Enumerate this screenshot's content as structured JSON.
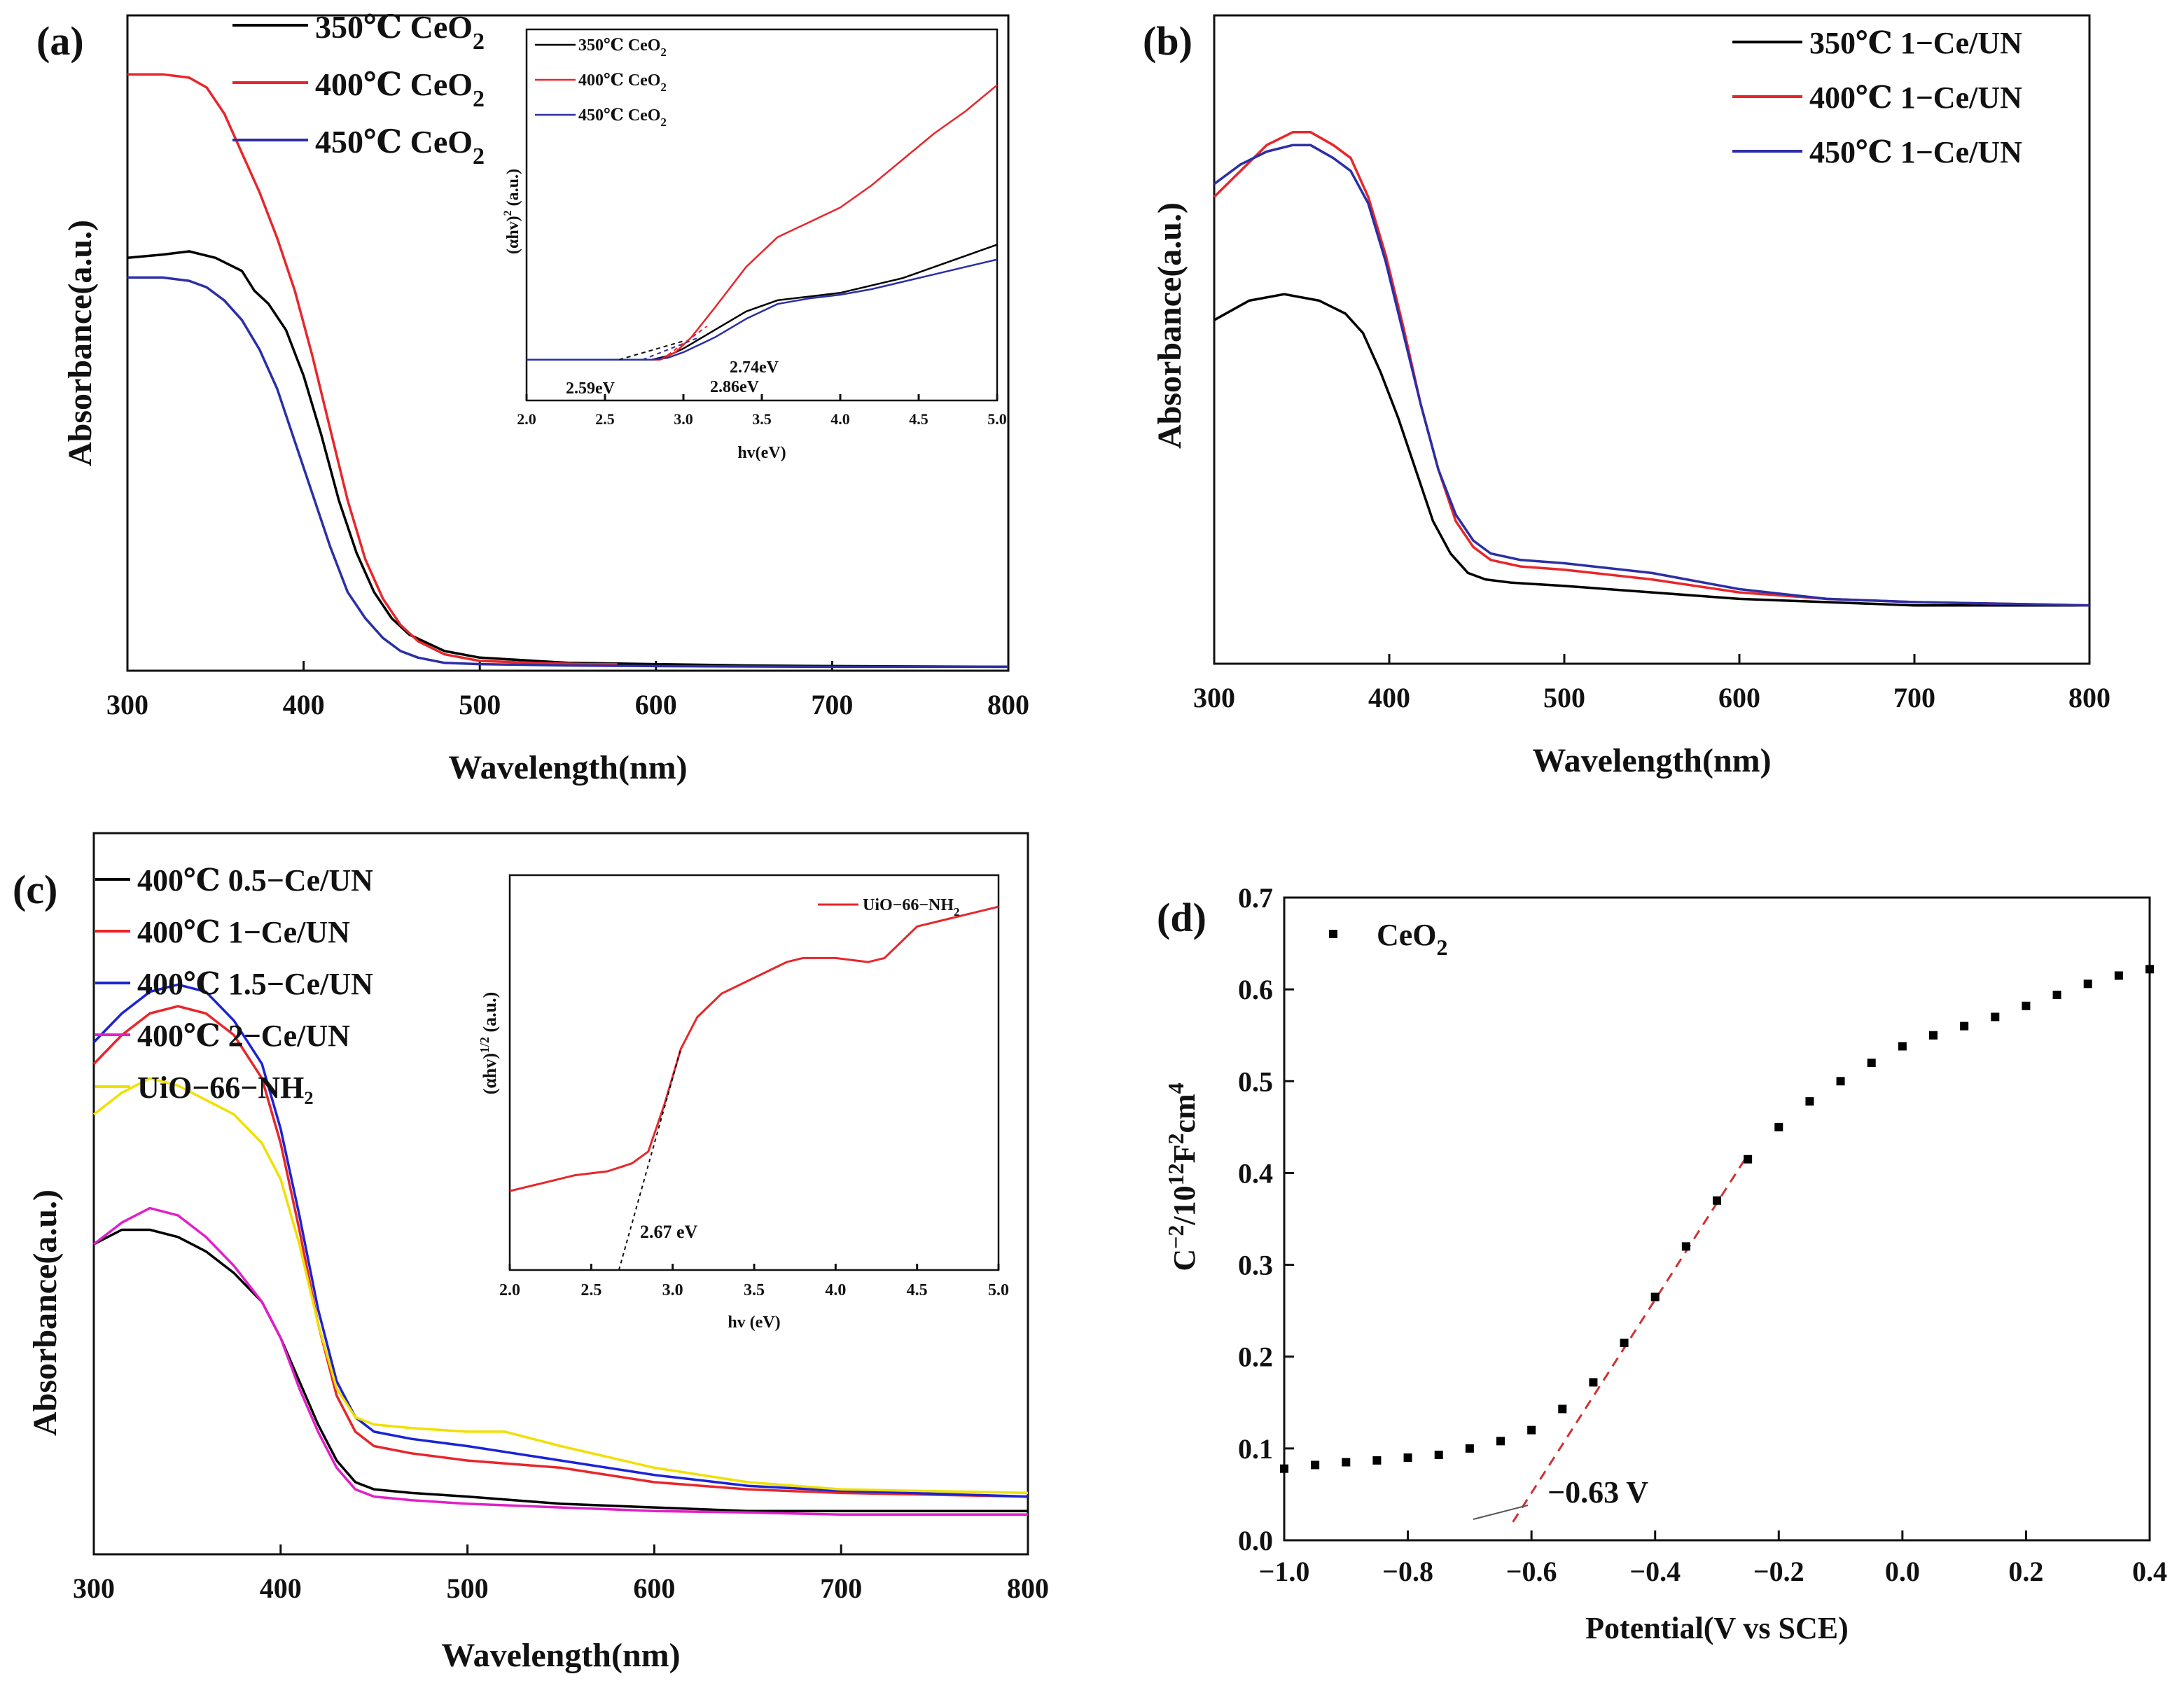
{
  "chart_data": [
    {
      "panel": "(a)",
      "type": "line",
      "title": "",
      "xlabel": "Wavelength(nm)",
      "ylabel": "Absorbance(a.u.)",
      "xlim": [
        300,
        800
      ],
      "ylim": [
        0,
        1.0
      ],
      "xticks": [
        "300",
        "400",
        "500",
        "600",
        "700",
        "800"
      ],
      "legend_position": "top-left",
      "series": [
        {
          "name": "350℃ CeO",
          "subscript": "2",
          "color": "#000000",
          "x": [
            300,
            320,
            335,
            350,
            365,
            372,
            380,
            390,
            400,
            410,
            420,
            430,
            440,
            450,
            460,
            480,
            500,
            550,
            600,
            650,
            700,
            800
          ],
          "y": [
            0.63,
            0.635,
            0.64,
            0.63,
            0.61,
            0.58,
            0.56,
            0.52,
            0.45,
            0.36,
            0.26,
            0.18,
            0.12,
            0.08,
            0.055,
            0.03,
            0.02,
            0.012,
            0.01,
            0.008,
            0.007,
            0.006
          ]
        },
        {
          "name": "400℃ CeO",
          "subscript": "2",
          "color": "#e8262a",
          "x": [
            300,
            320,
            335,
            345,
            355,
            365,
            375,
            385,
            395,
            405,
            415,
            425,
            435,
            445,
            455,
            465,
            480,
            500,
            530,
            560,
            578
          ],
          "y": [
            0.91,
            0.91,
            0.905,
            0.89,
            0.85,
            0.79,
            0.73,
            0.66,
            0.58,
            0.48,
            0.37,
            0.26,
            0.17,
            0.11,
            0.07,
            0.045,
            0.025,
            0.015,
            0.012,
            0.01,
            0.01
          ]
        },
        {
          "name": "450℃ CeO",
          "subscript": "2",
          "color": "#2b2fa6",
          "x": [
            300,
            320,
            335,
            345,
            355,
            365,
            375,
            385,
            395,
            405,
            415,
            425,
            435,
            445,
            455,
            465,
            480,
            500,
            550,
            600,
            700,
            800
          ],
          "y": [
            0.6,
            0.6,
            0.595,
            0.585,
            0.565,
            0.535,
            0.49,
            0.43,
            0.35,
            0.27,
            0.19,
            0.12,
            0.08,
            0.05,
            0.03,
            0.02,
            0.012,
            0.01,
            0.008,
            0.007,
            0.006,
            0.006
          ]
        }
      ],
      "inset": {
        "xlabel": "hv(eV)",
        "ylabel": "(αhv)",
        "ylabel_sup": "2",
        "ylabel_unit": " (a.u.)",
        "xlim": [
          2.0,
          5.0
        ],
        "ylim": [
          0,
          1.0
        ],
        "xticks": [
          "2.0",
          "2.5",
          "3.0",
          "3.5",
          "4.0",
          "4.5",
          "5.0"
        ],
        "legend_position": "top-left",
        "annotations": [
          {
            "text": "2.59eV",
            "color": "#111111",
            "x": 2.59
          },
          {
            "text": "2.74eV",
            "color": "#2b2fa6",
            "x": 2.74
          },
          {
            "text": "2.86eV",
            "color": "#e8262a",
            "x": 2.86
          }
        ],
        "series": [
          {
            "name": "350℃ CeO",
            "subscript": "2",
            "color": "#000000",
            "x": [
              2.0,
              2.8,
              2.9,
              3.0,
              3.2,
              3.4,
              3.6,
              3.8,
              4.0,
              4.2,
              4.4,
              4.6,
              4.8,
              5.0
            ],
            "y": [
              0.11,
              0.11,
              0.12,
              0.14,
              0.19,
              0.24,
              0.27,
              0.28,
              0.29,
              0.31,
              0.33,
              0.36,
              0.39,
              0.42
            ]
          },
          {
            "name": "400℃ CeO",
            "subscript": "2",
            "color": "#e8262a",
            "x": [
              2.0,
              2.85,
              2.95,
              3.05,
              3.2,
              3.4,
              3.6,
              3.8,
              4.0,
              4.2,
              4.4,
              4.6,
              4.8,
              5.0
            ],
            "y": [
              0.11,
              0.11,
              0.13,
              0.17,
              0.25,
              0.36,
              0.44,
              0.48,
              0.52,
              0.58,
              0.65,
              0.72,
              0.78,
              0.85
            ]
          },
          {
            "name": "450℃ CeO",
            "subscript": "2",
            "color": "#2b2fa6",
            "x": [
              2.0,
              2.8,
              2.9,
              3.0,
              3.2,
              3.4,
              3.6,
              3.8,
              4.0,
              4.2,
              4.4,
              4.6,
              4.8,
              5.0
            ],
            "y": [
              0.11,
              0.11,
              0.115,
              0.13,
              0.17,
              0.22,
              0.26,
              0.275,
              0.285,
              0.3,
              0.32,
              0.34,
              0.36,
              0.38
            ]
          }
        ]
      }
    },
    {
      "panel": "(b)",
      "type": "line",
      "title": "",
      "xlabel": "Wavelength(nm)",
      "ylabel": "Absorbance(a.u.)",
      "xlim": [
        300,
        800
      ],
      "ylim": [
        0,
        1.0
      ],
      "xticks": [
        "300",
        "400",
        "500",
        "600",
        "700",
        "800"
      ],
      "legend_position": "top-right",
      "series": [
        {
          "name": "350℃ 1−Ce/UN",
          "color": "#000000",
          "x": [
            300,
            320,
            340,
            360,
            375,
            385,
            395,
            405,
            415,
            425,
            435,
            445,
            455,
            470,
            500,
            550,
            600,
            650,
            700,
            800
          ],
          "y": [
            0.53,
            0.56,
            0.57,
            0.56,
            0.54,
            0.51,
            0.45,
            0.38,
            0.3,
            0.22,
            0.17,
            0.14,
            0.13,
            0.125,
            0.12,
            0.11,
            0.1,
            0.095,
            0.09,
            0.09
          ]
        },
        {
          "name": "400℃ 1−Ce/UN",
          "color": "#e8262a",
          "x": [
            300,
            315,
            330,
            345,
            355,
            368,
            378,
            388,
            398,
            408,
            418,
            428,
            438,
            448,
            458,
            475,
            500,
            550,
            600,
            650,
            700,
            800
          ],
          "y": [
            0.72,
            0.76,
            0.8,
            0.82,
            0.82,
            0.8,
            0.78,
            0.72,
            0.63,
            0.52,
            0.4,
            0.3,
            0.22,
            0.18,
            0.16,
            0.15,
            0.145,
            0.13,
            0.11,
            0.1,
            0.095,
            0.09
          ]
        },
        {
          "name": "450℃ 1−Ce/UN",
          "color": "#2b2fa6",
          "x": [
            300,
            315,
            330,
            345,
            355,
            368,
            378,
            388,
            398,
            408,
            418,
            428,
            438,
            448,
            458,
            475,
            500,
            550,
            600,
            650,
            700,
            800
          ],
          "y": [
            0.74,
            0.77,
            0.79,
            0.8,
            0.8,
            0.78,
            0.76,
            0.71,
            0.62,
            0.51,
            0.4,
            0.3,
            0.23,
            0.19,
            0.17,
            0.16,
            0.155,
            0.14,
            0.115,
            0.1,
            0.095,
            0.09
          ]
        }
      ]
    },
    {
      "panel": "(c)",
      "type": "line",
      "title": "",
      "xlabel": "Wavelength(nm)",
      "ylabel": "Absorbance(a.u.)",
      "xlim": [
        300,
        800
      ],
      "ylim": [
        0,
        1.0
      ],
      "xticks": [
        "300",
        "400",
        "500",
        "600",
        "700",
        "800"
      ],
      "legend_position": "top-left",
      "series": [
        {
          "name": "400℃ 0.5−Ce/UN",
          "color": "#000000",
          "x": [
            300,
            315,
            330,
            345,
            360,
            375,
            390,
            400,
            410,
            420,
            430,
            440,
            450,
            470,
            500,
            550,
            600,
            650,
            700,
            800
          ],
          "y": [
            0.43,
            0.45,
            0.45,
            0.44,
            0.42,
            0.39,
            0.35,
            0.3,
            0.24,
            0.18,
            0.13,
            0.1,
            0.09,
            0.085,
            0.08,
            0.07,
            0.065,
            0.06,
            0.06,
            0.06
          ]
        },
        {
          "name": "400℃ 1−Ce/UN",
          "color": "#e8262a",
          "x": [
            300,
            315,
            330,
            345,
            360,
            375,
            390,
            400,
            410,
            420,
            430,
            440,
            450,
            470,
            500,
            550,
            600,
            650,
            700,
            800
          ],
          "y": [
            0.68,
            0.72,
            0.75,
            0.76,
            0.75,
            0.72,
            0.66,
            0.57,
            0.45,
            0.32,
            0.22,
            0.17,
            0.15,
            0.14,
            0.13,
            0.12,
            0.1,
            0.09,
            0.085,
            0.08
          ]
        },
        {
          "name": "400℃ 1.5−Ce/UN",
          "color": "#1b23d6",
          "x": [
            300,
            315,
            330,
            345,
            360,
            375,
            390,
            400,
            410,
            420,
            430,
            440,
            450,
            470,
            500,
            550,
            600,
            650,
            700,
            800
          ],
          "y": [
            0.71,
            0.75,
            0.78,
            0.79,
            0.78,
            0.74,
            0.68,
            0.59,
            0.47,
            0.34,
            0.24,
            0.19,
            0.17,
            0.16,
            0.15,
            0.13,
            0.11,
            0.095,
            0.088,
            0.08
          ]
        },
        {
          "name": "400℃ 2−Ce/UN",
          "color": "#e020c8",
          "x": [
            300,
            315,
            330,
            345,
            360,
            375,
            390,
            400,
            410,
            420,
            430,
            440,
            450,
            470,
            500,
            550,
            600,
            650,
            700,
            800
          ],
          "y": [
            0.43,
            0.46,
            0.48,
            0.47,
            0.44,
            0.4,
            0.35,
            0.3,
            0.23,
            0.17,
            0.12,
            0.09,
            0.08,
            0.075,
            0.07,
            0.065,
            0.06,
            0.058,
            0.055,
            0.055
          ]
        },
        {
          "name": "UiO−66−NH₂",
          "color": "#f0e000",
          "x": [
            300,
            315,
            330,
            345,
            360,
            375,
            390,
            400,
            410,
            420,
            430,
            440,
            450,
            470,
            500,
            520,
            550,
            600,
            650,
            700,
            800
          ],
          "y": [
            0.61,
            0.64,
            0.66,
            0.65,
            0.63,
            0.61,
            0.57,
            0.52,
            0.43,
            0.32,
            0.23,
            0.19,
            0.18,
            0.175,
            0.17,
            0.17,
            0.15,
            0.12,
            0.1,
            0.09,
            0.085
          ]
        }
      ],
      "inset": {
        "xlabel": "hv (eV)",
        "ylabel": "(αhv)",
        "ylabel_sup": "1/2",
        "ylabel_unit": " (a.u.)",
        "xlim": [
          2.0,
          5.0
        ],
        "ylim": [
          0,
          1.0
        ],
        "xticks": [
          "2.0",
          "2.5",
          "3.0",
          "3.5",
          "4.0",
          "4.5",
          "5.0"
        ],
        "legend_position": "top-right",
        "annotation": "2.67 eV",
        "series": [
          {
            "name": "UiO−66−NH",
            "subscript": "2",
            "color": "#e8262a",
            "x": [
              2.0,
              2.2,
              2.4,
              2.6,
              2.75,
              2.85,
              2.95,
              3.05,
              3.15,
              3.3,
              3.5,
              3.7,
              3.8,
              4.0,
              4.2,
              4.3,
              4.4,
              4.5,
              4.7,
              5.0
            ],
            "y": [
              0.2,
              0.22,
              0.24,
              0.25,
              0.27,
              0.3,
              0.42,
              0.56,
              0.64,
              0.7,
              0.74,
              0.78,
              0.79,
              0.79,
              0.78,
              0.79,
              0.83,
              0.87,
              0.89,
              0.92
            ]
          }
        ]
      }
    },
    {
      "panel": "(d)",
      "type": "scatter",
      "title": "",
      "xlabel": "Potential(V vs SCE)",
      "ylabel": "C",
      "ylabel_sup": "−2",
      "ylabel_mid": "/10",
      "ylabel_sup2": "12",
      "ylabel_f": "F",
      "ylabel_sup3": "2",
      "ylabel_cm": "cm",
      "ylabel_sup4": "4",
      "xlim": [
        -1.0,
        0.4
      ],
      "ylim": [
        0.0,
        0.7
      ],
      "xticks": [
        "−1.0",
        "−0.8",
        "−0.6",
        "−0.4",
        "−0.2",
        "0.0",
        "0.2",
        "0.4"
      ],
      "yticks": [
        "0.0",
        "0.1",
        "0.2",
        "0.3",
        "0.4",
        "0.5",
        "0.6",
        "0.7"
      ],
      "legend_position": "top-left",
      "annotation": "−0.63 V",
      "fit_line": {
        "color": "#cc3333",
        "x": [
          -0.63,
          -0.25
        ],
        "y": [
          0.02,
          0.42
        ]
      },
      "series": [
        {
          "name": "CeO",
          "subscript": "2",
          "color": "#000000",
          "x": [
            -1.0,
            -0.95,
            -0.9,
            -0.85,
            -0.8,
            -0.75,
            -0.7,
            -0.65,
            -0.6,
            -0.55,
            -0.5,
            -0.45,
            -0.4,
            -0.35,
            -0.3,
            -0.25,
            -0.2,
            -0.15,
            -0.1,
            -0.05,
            0.0,
            0.05,
            0.1,
            0.15,
            0.2,
            0.25,
            0.3,
            0.35,
            0.4
          ],
          "y": [
            0.078,
            0.082,
            0.085,
            0.087,
            0.09,
            0.093,
            0.1,
            0.108,
            0.12,
            0.143,
            0.172,
            0.215,
            0.265,
            0.32,
            0.37,
            0.415,
            0.45,
            0.478,
            0.5,
            0.52,
            0.538,
            0.55,
            0.56,
            0.57,
            0.582,
            0.594,
            0.606,
            0.615,
            0.622
          ]
        }
      ]
    }
  ]
}
